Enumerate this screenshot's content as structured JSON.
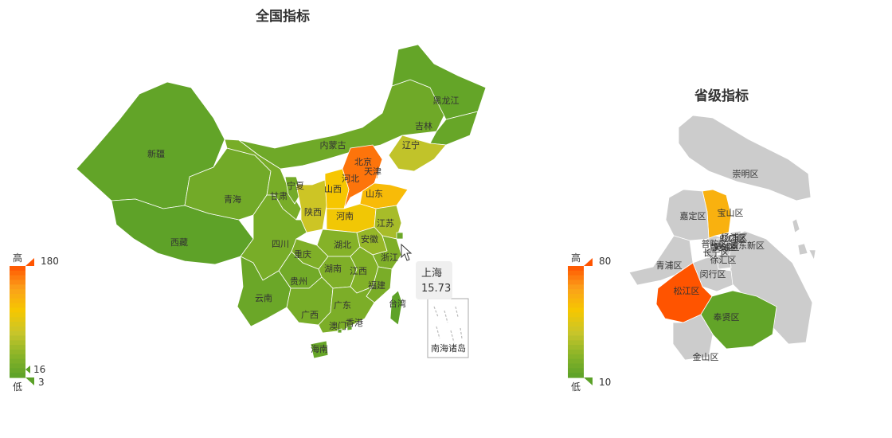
{
  "chart_data": [
    {
      "type": "map",
      "title": "全国指标",
      "visual_map": {
        "high_label": "高",
        "low_label": "低",
        "max": 180,
        "min": 3,
        "selected_low": 16,
        "colors": [
          "#5ba128",
          "#8ab428",
          "#c8c52a",
          "#f6c700",
          "#fba01a",
          "#ff5400"
        ]
      },
      "regions": [
        {
          "name": "新疆",
          "value": 8
        },
        {
          "name": "西藏",
          "value": 5
        },
        {
          "name": "青海",
          "value": 20
        },
        {
          "name": "甘肃",
          "value": 25
        },
        {
          "name": "宁夏",
          "value": 22
        },
        {
          "name": "内蒙古",
          "value": 18
        },
        {
          "name": "黑龙江",
          "value": 10
        },
        {
          "name": "吉林",
          "value": 12
        },
        {
          "name": "辽宁",
          "value": 70
        },
        {
          "name": "北京",
          "value": 180
        },
        {
          "name": "天津",
          "value": 150
        },
        {
          "name": "河北",
          "value": 165
        },
        {
          "name": "山西",
          "value": 110
        },
        {
          "name": "山东",
          "value": 120
        },
        {
          "name": "河南",
          "value": 105
        },
        {
          "name": "陕西",
          "value": 78
        },
        {
          "name": "四川",
          "value": 25
        },
        {
          "name": "重庆",
          "value": 30
        },
        {
          "name": "湖北",
          "value": 35
        },
        {
          "name": "安徽",
          "value": 45
        },
        {
          "name": "江苏",
          "value": 55
        },
        {
          "name": "上海",
          "value": 15.73
        },
        {
          "name": "浙江",
          "value": 30
        },
        {
          "name": "贵州",
          "value": 20
        },
        {
          "name": "湖南",
          "value": 30
        },
        {
          "name": "江西",
          "value": 32
        },
        {
          "name": "福建",
          "value": 26
        },
        {
          "name": "云南",
          "value": 15
        },
        {
          "name": "广西",
          "value": 25
        },
        {
          "name": "广东",
          "value": 28
        },
        {
          "name": "海南",
          "value": 12
        },
        {
          "name": "台湾",
          "value": 5
        },
        {
          "name": "香港",
          "value": 10
        },
        {
          "name": "澳门",
          "value": 10
        }
      ],
      "inset_label": "南海诸岛",
      "tooltip": {
        "name": "上海",
        "value": "15.73"
      }
    },
    {
      "type": "map",
      "title": "省级指标",
      "visual_map": {
        "high_label": "高",
        "low_label": "低",
        "max": 80,
        "min": 10
      },
      "regions": [
        {
          "name": "崇明区",
          "value": null
        },
        {
          "name": "宝山区",
          "value": 60
        },
        {
          "name": "嘉定区",
          "value": null
        },
        {
          "name": "普陀区",
          "value": null
        },
        {
          "name": "长宁区",
          "value": null
        },
        {
          "name": "静安区",
          "value": null
        },
        {
          "name": "虹口区",
          "value": null
        },
        {
          "name": "杨浦区",
          "value": null
        },
        {
          "name": "黄浦区",
          "value": null
        },
        {
          "name": "浦东新区",
          "value": null
        },
        {
          "name": "徐汇区",
          "value": null
        },
        {
          "name": "青浦区",
          "value": null
        },
        {
          "name": "闵行区",
          "value": null
        },
        {
          "name": "松江区",
          "value": 80
        },
        {
          "name": "奉贤区",
          "value": 12
        },
        {
          "name": "金山区",
          "value": null
        }
      ]
    }
  ]
}
